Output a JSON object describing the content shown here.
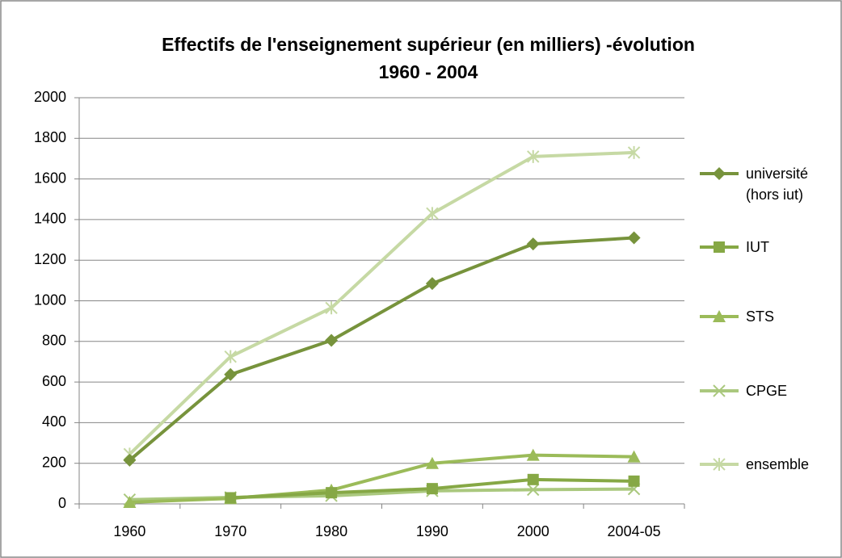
{
  "chart_data": {
    "type": "line",
    "title": "Effectifs de l'enseignement supérieur (en milliers) -évolution\n1960 - 2004",
    "categories": [
      "1960",
      "1970",
      "1980",
      "1990",
      "2000",
      "2004-05"
    ],
    "series": [
      {
        "name": "université (hors iut)",
        "color": "#77933c",
        "marker": "diamond",
        "values": [
          215,
          637,
          805,
          1085,
          1280,
          1310
        ]
      },
      {
        "name": "IUT",
        "color": "#86a845",
        "marker": "square",
        "values": [
          null,
          30,
          55,
          75,
          120,
          112
        ]
      },
      {
        "name": "STS",
        "color": "#9bbb59",
        "marker": "triangle",
        "values": [
          8,
          27,
          68,
          200,
          240,
          232
        ]
      },
      {
        "name": "CPGE",
        "color": "#aac87e",
        "marker": "x",
        "values": [
          21,
          32,
          40,
          64,
          70,
          73
        ]
      },
      {
        "name": "ensemble",
        "color": "#c6d9a4",
        "marker": "star",
        "values": [
          245,
          725,
          965,
          1430,
          1710,
          1730
        ]
      }
    ],
    "ylim": [
      0,
      2000
    ],
    "yticks": [
      0,
      200,
      400,
      600,
      800,
      1000,
      1200,
      1400,
      1600,
      1800,
      2000
    ],
    "grid": true,
    "legend": "right"
  }
}
